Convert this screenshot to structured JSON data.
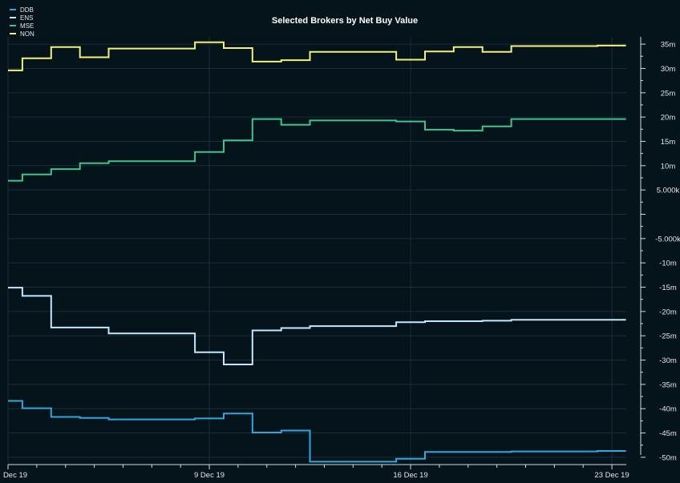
{
  "chart_data": {
    "type": "line",
    "title": "Selected Brokers by Net Buy Value",
    "xlabel": "",
    "ylabel": "",
    "x_ticks": [
      {
        "label": "Dec 19",
        "day": 2
      },
      {
        "label": "9 Dec 19",
        "day": 9
      },
      {
        "label": "16 Dec 19",
        "day": 16
      },
      {
        "label": "23 Dec 19",
        "day": 23
      }
    ],
    "y_ticks": [
      {
        "label": "35m",
        "value": 35
      },
      {
        "label": "30m",
        "value": 30
      },
      {
        "label": "25m",
        "value": 25
      },
      {
        "label": "20m",
        "value": 20
      },
      {
        "label": "15m",
        "value": 15
      },
      {
        "label": "10m",
        "value": 10
      },
      {
        "label": "5.000k",
        "value": 5
      },
      {
        "label": "-5.000k",
        "value": -5
      },
      {
        "label": "-10m",
        "value": -10
      },
      {
        "label": "-15m",
        "value": -15
      },
      {
        "label": "-20m",
        "value": -20
      },
      {
        "label": "-25m",
        "value": -25
      },
      {
        "label": "-30m",
        "value": -30
      },
      {
        "label": "-35m",
        "value": -35
      },
      {
        "label": "-40m",
        "value": -40
      },
      {
        "label": "-45m",
        "value": -45
      },
      {
        "label": "-50m",
        "value": -50
      }
    ],
    "xlim": [
      2.0,
      23.5
    ],
    "ylim": [
      -51.5,
      36.5
    ],
    "grid": true,
    "legend_position": "top-left",
    "x": [
      2,
      3,
      4,
      5,
      6,
      7,
      8,
      9,
      10,
      11,
      12,
      13,
      14,
      15,
      16,
      17,
      18,
      19,
      20,
      21,
      22,
      23
    ],
    "series": [
      {
        "name": "DDB",
        "color": "#2ea8e0",
        "values": [
          -38.4,
          -39.9,
          -41.7,
          -41.9,
          -42.2,
          -42.2,
          -42.2,
          -42.0,
          -41.0,
          -44.9,
          -44.5,
          -50.9,
          -50.9,
          -50.9,
          -50.3,
          -48.9,
          -48.9,
          -48.9,
          -48.8,
          -48.8,
          -48.8,
          -48.7
        ]
      },
      {
        "name": "ENS",
        "color": "#bfe9ff",
        "values": [
          -15.1,
          -16.8,
          -23.3,
          -23.3,
          -24.5,
          -24.5,
          -24.5,
          -28.4,
          -30.9,
          -23.9,
          -23.4,
          -23.0,
          -23.0,
          -23.0,
          -22.2,
          -22.0,
          -22.0,
          -21.9,
          -21.7,
          -21.7,
          -21.7,
          -21.7
        ]
      },
      {
        "name": "MSE",
        "color": "#3ec48e",
        "values": [
          6.9,
          8.2,
          9.3,
          10.5,
          10.9,
          10.9,
          10.9,
          12.8,
          15.2,
          19.6,
          18.4,
          19.3,
          19.3,
          19.3,
          19.1,
          17.4,
          17.2,
          18.1,
          19.6,
          19.6,
          19.6,
          19.6
        ]
      },
      {
        "name": "NON",
        "color": "#f2f07a",
        "values": [
          29.6,
          32.1,
          34.4,
          32.3,
          34.1,
          34.1,
          34.1,
          35.4,
          34.2,
          31.4,
          31.7,
          33.4,
          33.4,
          33.4,
          31.8,
          33.5,
          34.4,
          33.4,
          34.6,
          34.6,
          34.6,
          34.7
        ]
      }
    ]
  }
}
